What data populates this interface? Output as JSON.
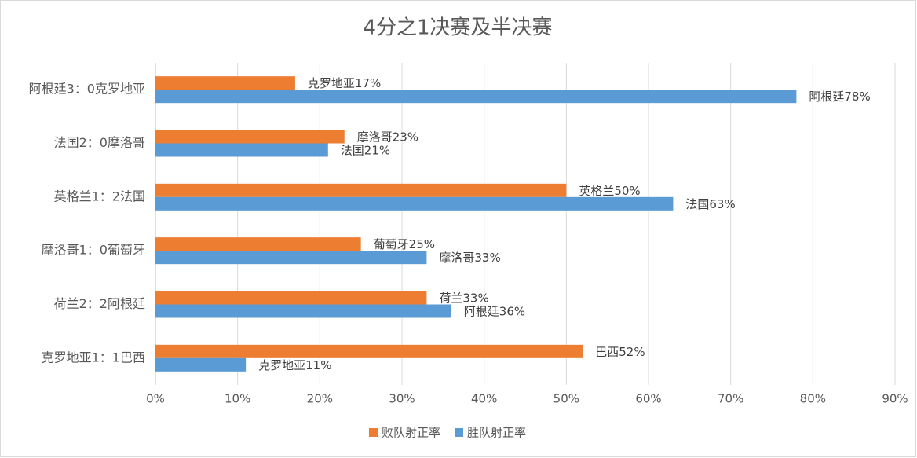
{
  "chart_data": {
    "type": "hbar",
    "title": "4分之1决赛及半决赛",
    "categories": [
      "阿根廷3：0克罗地亚",
      "法国2：0摩洛哥",
      "英格兰1：2法国",
      "摩洛哥1：0葡萄牙",
      "荷兰2：2阿根廷",
      "克罗地亚1：1巴西"
    ],
    "series": [
      {
        "name": "败队射正率",
        "color": "#ED7D31",
        "values": [
          17,
          23,
          50,
          25,
          33,
          52
        ],
        "value_labels": [
          "克罗地亚17%",
          "摩洛哥23%",
          "英格兰50%",
          "葡萄牙25%",
          "荷兰33%",
          "巴西52%"
        ]
      },
      {
        "name": "胜队射正率",
        "color": "#5B9BD5",
        "values": [
          78,
          21,
          63,
          33,
          36,
          11
        ],
        "value_labels": [
          "阿根廷78%",
          "法国21%",
          "法国63%",
          "摩洛哥33%",
          "阿根廷36%",
          "克罗地亚11%"
        ]
      }
    ],
    "xlim": [
      0,
      90
    ],
    "xticks": [
      {
        "value": 0,
        "label": "0%"
      },
      {
        "value": 10,
        "label": "10%"
      },
      {
        "value": 20,
        "label": "20%"
      },
      {
        "value": 30,
        "label": "30%"
      },
      {
        "value": 40,
        "label": "40%"
      },
      {
        "value": 50,
        "label": "50%"
      },
      {
        "value": 60,
        "label": "60%"
      },
      {
        "value": 70,
        "label": "70%"
      },
      {
        "value": 80,
        "label": "80%"
      },
      {
        "value": 90,
        "label": "90%"
      }
    ],
    "grid": true,
    "legend": "bottom"
  }
}
